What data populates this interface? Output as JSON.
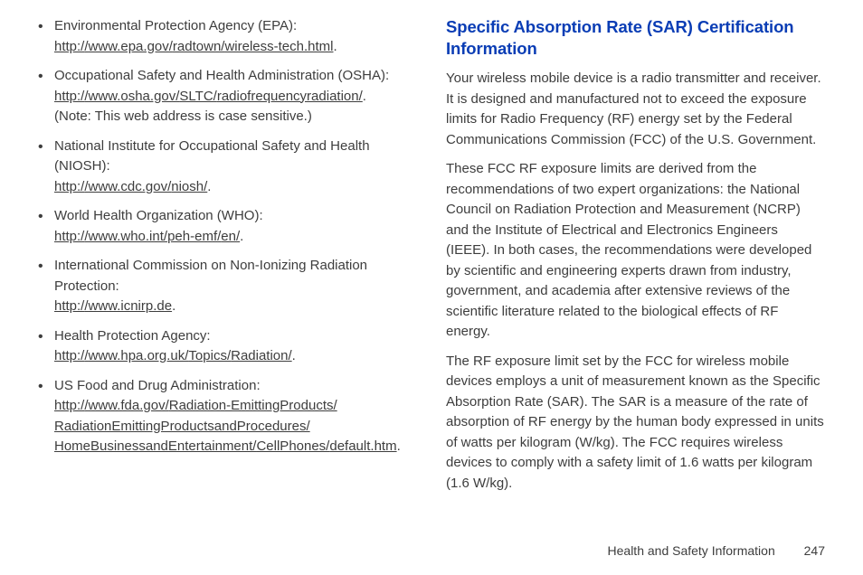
{
  "left": {
    "items": [
      {
        "label": "Environmental Protection Agency (EPA):",
        "link": "http://www.epa.gov/radtown/wireless-tech.html",
        "trail": ".",
        "note": ""
      },
      {
        "label": "Occupational Safety and Health Administration (OSHA):",
        "link": "http://www.osha.gov/SLTC/radiofrequencyradiation/",
        "trail": ".",
        "note": "(Note: This web address is case sensitive.)"
      },
      {
        "label": "National Institute for Occupational Safety and Health (NIOSH):",
        "link": "http://www.cdc.gov/niosh/",
        "trail": ".",
        "note": ""
      },
      {
        "label": "World Health Organization (WHO):",
        "link": "http://www.who.int/peh-emf/en/",
        "trail": ".",
        "note": ""
      },
      {
        "label": "International Commission on Non-Ionizing Radiation Protection:",
        "link": "http://www.icnirp.de",
        "trail": ".",
        "note": ""
      },
      {
        "label": "Health Protection Agency:",
        "link": "http://www.hpa.org.uk/Topics/Radiation/",
        "trail": ".",
        "note": ""
      },
      {
        "label": "US Food and Drug Administration:",
        "link": "http://www.fda.gov/Radiation-EmittingProducts/RadiationEmittingProductsandProcedures/HomeBusinessandEntertainment/CellPhones/default.htm",
        "trail": ".",
        "note": ""
      }
    ]
  },
  "right": {
    "heading": "Specific Absorption Rate (SAR) Certification Information",
    "p1": "Your wireless mobile device is a radio transmitter and receiver. It is designed and manufactured not to exceed the exposure limits for Radio Frequency (RF) energy set by the Federal Communications Commission (FCC) of the U.S. Government.",
    "p2": "These FCC RF exposure limits are derived from the recommendations of two expert organizations: the National Council on Radiation Protection and Measurement (NCRP) and the Institute of Electrical and Electronics Engineers (IEEE). In both cases, the recommendations were developed by scientific and engineering experts drawn from industry, government, and academia after extensive reviews of the scientific literature related to the biological effects of RF energy.",
    "p3": "The RF exposure limit set by the FCC for wireless mobile devices employs a unit of measurement known as the Specific Absorption Rate (SAR). The SAR is a measure of the rate of absorption of RF energy by the human body expressed in units of watts per kilogram (W/kg). The FCC requires wireless devices to comply with a safety limit of 1.6 watts per kilogram (1.6 W/kg)."
  },
  "footer": {
    "section": "Health and Safety Information",
    "page": "247"
  }
}
